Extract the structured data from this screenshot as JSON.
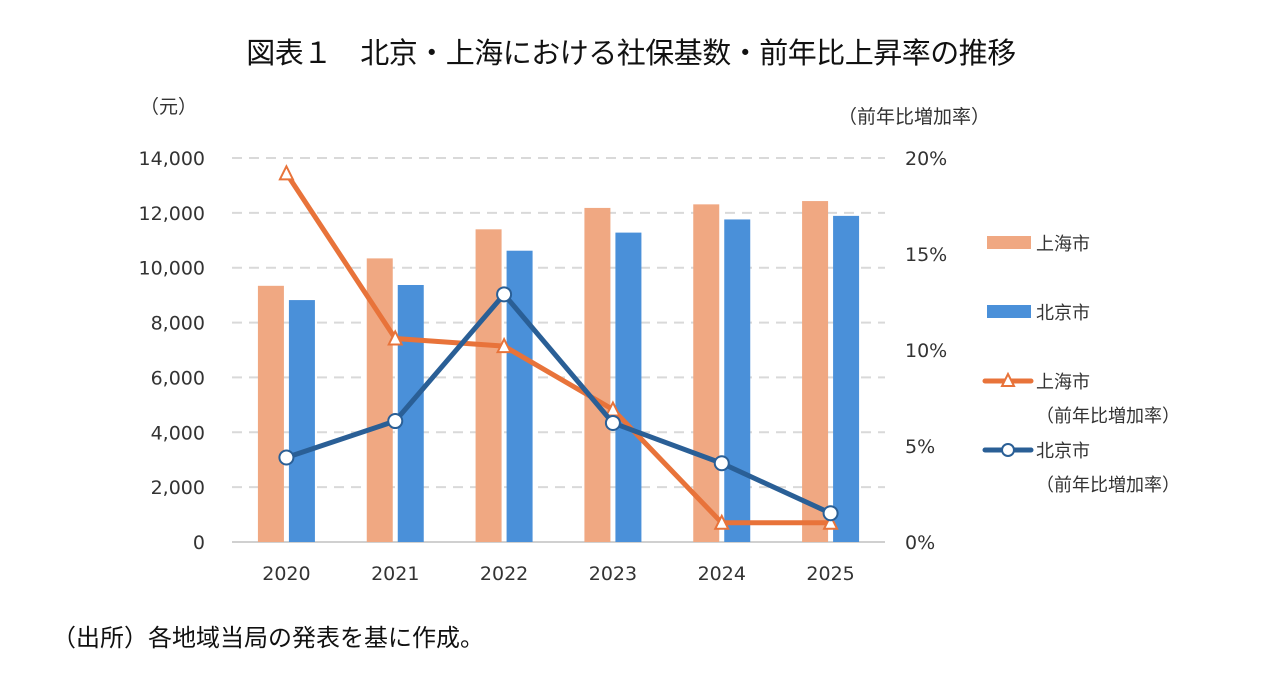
{
  "title": "図表１　北京・上海における社保基数・前年比上昇率の推移",
  "source_note": "（出所）各地域当局の発表を基に作成。",
  "chart_data": {
    "type": "bar",
    "title": "図表１　北京・上海における社保基数・前年比上昇率の推移",
    "xlabel": "",
    "ylabel": "（元）",
    "y2label": "（前年比増加率）",
    "categories": [
      "2020",
      "2021",
      "2022",
      "2023",
      "2024",
      "2025"
    ],
    "ylim": [
      0,
      14000
    ],
    "y_ticks": [
      0,
      2000,
      4000,
      6000,
      8000,
      10000,
      12000,
      14000
    ],
    "y_tick_labels": [
      "0",
      "2,000",
      "4,000",
      "6,000",
      "8,000",
      "10,000",
      "12,000",
      "14,000"
    ],
    "y2lim": [
      0,
      20
    ],
    "y2_ticks": [
      0,
      5,
      10,
      15,
      20
    ],
    "y2_tick_labels": [
      "0%",
      "5%",
      "10%",
      "15%",
      "20%"
    ],
    "grid": "horizontal dashed",
    "legend_position": "right",
    "series": [
      {
        "name": "上海市",
        "type": "bar",
        "axis": "left",
        "color": "#F0A882",
        "values": [
          9340,
          10340,
          11400,
          12180,
          12310,
          12430
        ]
      },
      {
        "name": "北京市",
        "type": "bar",
        "axis": "left",
        "color": "#4A90D9",
        "values": [
          8820,
          9370,
          10620,
          11280,
          11760,
          11890
        ]
      },
      {
        "name": "上海市",
        "name_line2": "（前年比増加率）",
        "type": "line",
        "marker": "triangle",
        "axis": "right",
        "color": "#E8733A",
        "values": [
          19.2,
          10.6,
          10.2,
          6.9,
          1.0,
          1.0
        ]
      },
      {
        "name": "北京市",
        "name_line2": "（前年比増加率）",
        "type": "line",
        "marker": "circle",
        "axis": "right",
        "color": "#2A5F96",
        "values": [
          4.4,
          6.3,
          12.9,
          6.2,
          4.1,
          1.5
        ]
      }
    ]
  }
}
